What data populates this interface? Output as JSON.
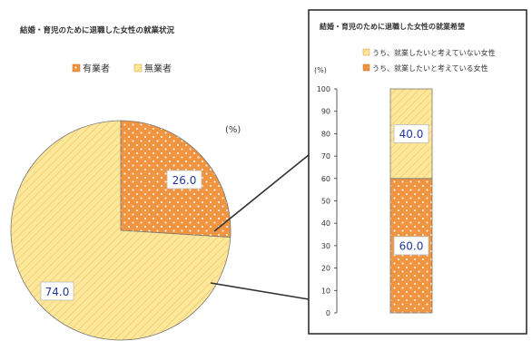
{
  "chart_data": [
    {
      "type": "pie",
      "title": "結婚・育児のために退職した女性の就業状況",
      "unit": "(%)",
      "legend_position": "top",
      "legend": [
        "有業者",
        "無業者"
      ],
      "slices": [
        {
          "name": "有業者",
          "value": 26.0,
          "label": "26.0",
          "color": "#f0943f"
        },
        {
          "name": "無業者",
          "value": 74.0,
          "label": "74.0",
          "color": "#fde79a"
        }
      ]
    },
    {
      "type": "bar",
      "stacked": true,
      "title": "結婚・育児のために退職した女性の就業希望",
      "ylabel": "(%)",
      "ylim": [
        0,
        100
      ],
      "yticks": [
        "0",
        "10",
        "20",
        "30",
        "40",
        "50",
        "60",
        "70",
        "80",
        "90",
        "100"
      ],
      "legend_position": "top",
      "legend": [
        "うち、就業したいと考えていない女性",
        "うち、就業したいと考えている女性"
      ],
      "series": [
        {
          "name": "うち、就業したいと考えている女性",
          "value": 60.0,
          "label": "60.0",
          "color": "#f0943f"
        },
        {
          "name": "うち、就業したいと考えていない女性",
          "value": 40.0,
          "label": "40.0",
          "color": "#fde79a"
        }
      ]
    }
  ]
}
